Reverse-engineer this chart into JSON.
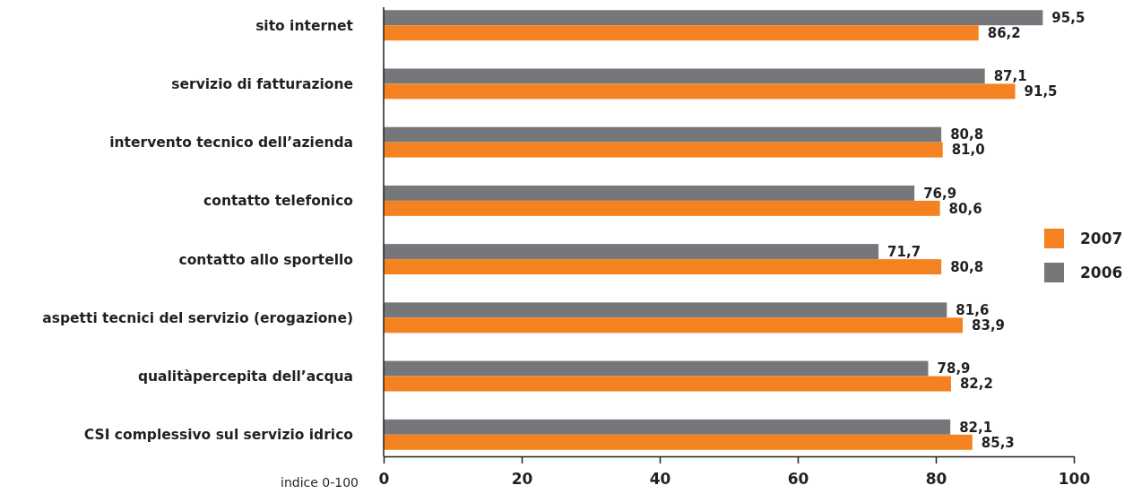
{
  "chart_data": {
    "type": "bar",
    "orientation": "horizontal",
    "xlabel": "indice 0-100",
    "categories": [
      "sito internet",
      "servizio di fatturazione",
      "intervento tecnico dell’azienda",
      "contatto telefonico",
      "contatto allo sportello",
      "aspetti tecnici del servizio (erogazione)",
      "qualitàpercepita dell’acqua",
      "CSI complessivo sul servizio idrico"
    ],
    "series": [
      {
        "name": "2006",
        "color": "#76777b",
        "values": [
          95.5,
          87.1,
          80.8,
          76.9,
          71.7,
          81.6,
          78.9,
          82.1
        ],
        "value_labels": [
          "95,5",
          "87,1",
          "80,8",
          "76,9",
          "71,7",
          "81,6",
          "78,9",
          "82,1"
        ]
      },
      {
        "name": "2007",
        "color": "#f58220",
        "values": [
          86.2,
          91.5,
          81.0,
          80.6,
          80.8,
          83.9,
          82.2,
          85.3
        ],
        "value_labels": [
          "86,2",
          "91,5",
          "81,0",
          "80,6",
          "80,8",
          "83,9",
          "82,2",
          "85,3"
        ]
      }
    ],
    "xlim": [
      0,
      100
    ],
    "xticks": [
      0,
      20,
      40,
      60,
      80,
      100
    ],
    "legend": "right",
    "grid": false
  }
}
